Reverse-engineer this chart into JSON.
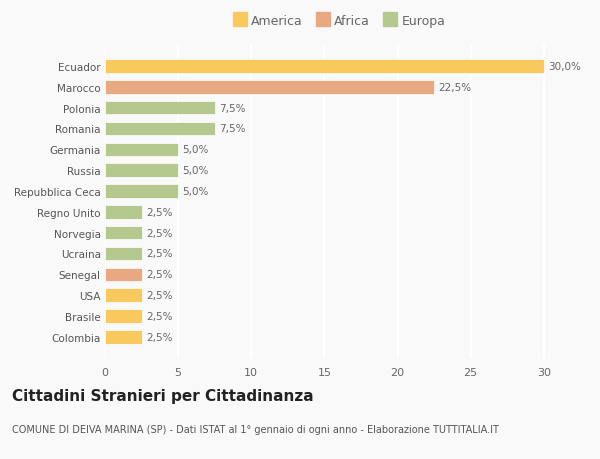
{
  "categories": [
    "Colombia",
    "Brasile",
    "USA",
    "Senegal",
    "Ucraina",
    "Norvegia",
    "Regno Unito",
    "Repubblica Ceca",
    "Russia",
    "Germania",
    "Romania",
    "Polonia",
    "Marocco",
    "Ecuador"
  ],
  "values": [
    2.5,
    2.5,
    2.5,
    2.5,
    2.5,
    2.5,
    2.5,
    5.0,
    5.0,
    5.0,
    7.5,
    7.5,
    22.5,
    30.0
  ],
  "colors": [
    "#f9c95e",
    "#f9c95e",
    "#f9c95e",
    "#e8a882",
    "#b5c98e",
    "#b5c98e",
    "#b5c98e",
    "#b5c98e",
    "#b5c98e",
    "#b5c98e",
    "#b5c98e",
    "#b5c98e",
    "#e8a882",
    "#f9c95e"
  ],
  "labels": [
    "2,5%",
    "2,5%",
    "2,5%",
    "2,5%",
    "2,5%",
    "2,5%",
    "2,5%",
    "5,0%",
    "5,0%",
    "5,0%",
    "7,5%",
    "7,5%",
    "22,5%",
    "30,0%"
  ],
  "legend": [
    {
      "label": "America",
      "color": "#f9c95e"
    },
    {
      "label": "Africa",
      "color": "#e8a882"
    },
    {
      "label": "Europa",
      "color": "#b5c98e"
    }
  ],
  "xlim": [
    0,
    32
  ],
  "xticks": [
    0,
    5,
    10,
    15,
    20,
    25,
    30
  ],
  "title": "Cittadini Stranieri per Cittadinanza",
  "subtitle": "COMUNE DI DEIVA MARINA (SP) - Dati ISTAT al 1° gennaio di ogni anno - Elaborazione TUTTITALIA.IT",
  "bg_color": "#f9f9f9",
  "bar_edge_color": "white",
  "grid_color": "#ffffff",
  "label_fontsize": 7.5,
  "tick_fontsize": 8,
  "title_fontsize": 11,
  "subtitle_fontsize": 7
}
